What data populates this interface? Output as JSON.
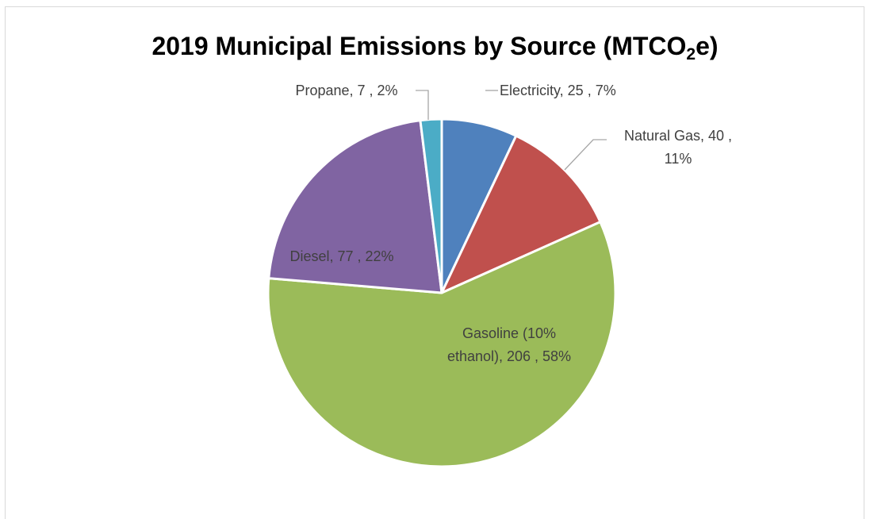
{
  "chart_data": {
    "type": "pie",
    "title_main": "2019 Municipal Emissions by Source (MTCO",
    "title_sub": "2",
    "title_end": "e)",
    "start_angle_deg": 0,
    "direction": "clockwise",
    "slices": [
      {
        "name": "Electricity",
        "value": 25,
        "percent": "7%",
        "color": "#4f81bd",
        "label_lines": [
          "Electricity,  25 , 7%"
        ]
      },
      {
        "name": "Natural Gas",
        "value": 40,
        "percent": "11%",
        "color": "#c0504d",
        "label_lines": [
          "Natural Gas,  40 ,",
          "11%"
        ]
      },
      {
        "name": "Gasoline (10% ethanol)",
        "value": 206,
        "percent": "58%",
        "color": "#9bbb59",
        "label_lines": [
          "Gasoline (10%",
          "ethanol),  206 , 58%"
        ]
      },
      {
        "name": "Diesel",
        "value": 77,
        "percent": "22%",
        "color": "#8064a2",
        "label_lines": [
          "Diesel,  77 , 22%"
        ]
      },
      {
        "name": "Propane",
        "value": 7,
        "percent": "2%",
        "color": "#4bacc6",
        "label_lines": [
          "Propane,  7 , 2%"
        ]
      }
    ],
    "legend": "none"
  }
}
